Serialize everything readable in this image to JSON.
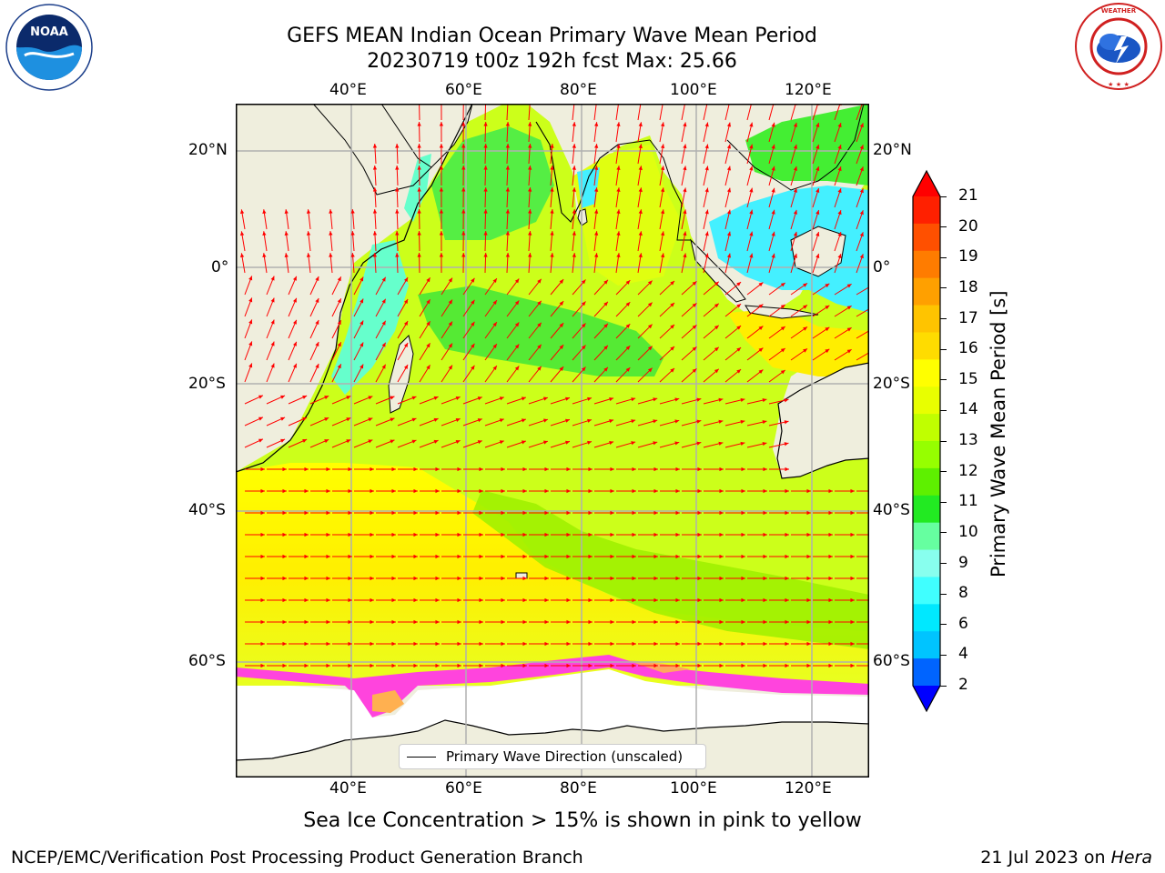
{
  "title": {
    "line1": "GEFS MEAN Indian Ocean Primary Wave Mean Period",
    "line2": "20230719 t00z 192h fcst   Max: 25.66"
  },
  "logos": {
    "left": {
      "text": "NOAA",
      "ring_text": "NATIONAL OCEANIC AND ATMOSPHERIC ADMINISTRATION · U.S. DEPARTMENT OF COMMERCE"
    },
    "right": {
      "ring_text": "NATIONAL WEATHER SERVICE"
    }
  },
  "map": {
    "lon_ticks": [
      "40°E",
      "60°E",
      "80°E",
      "100°E",
      "120°E"
    ],
    "lat_ticks": [
      "20°N",
      "0°",
      "20°S",
      "40°S",
      "60°S"
    ],
    "colors": {
      "land": "#efeedd",
      "ice_free": "#ffffff",
      "arrow": "#ff0000",
      "grid": "#b0b0b0"
    }
  },
  "legend": {
    "label": "Primary Wave Direction (unscaled)"
  },
  "colorbar": {
    "label": "Primary Wave Mean Period [s]",
    "ticks": [
      "21",
      "20",
      "19",
      "18",
      "17",
      "16",
      "15",
      "14",
      "13",
      "12",
      "11",
      "10",
      "9",
      "8",
      "6",
      "4",
      "2"
    ],
    "colors_top_to_bottom": [
      "#ff2000",
      "#ff5000",
      "#ff7c00",
      "#ffa000",
      "#ffc400",
      "#ffdc00",
      "#ffff00",
      "#e8ff00",
      "#c0ff00",
      "#96ff00",
      "#5ef000",
      "#22ea22",
      "#66ffa0",
      "#88ffee",
      "#40ffff",
      "#00e8ff",
      "#00c4ff",
      "#0064ff"
    ],
    "over_color": "#ff0000",
    "under_color": "#0000ff"
  },
  "caption": "Sea Ice Concentration > 15% is shown in pink to yellow",
  "footer": {
    "left": "NCEP/EMC/Verification Post Processing Product Generation Branch",
    "date": "21 Jul 2023 on ",
    "machine": "Hera"
  }
}
